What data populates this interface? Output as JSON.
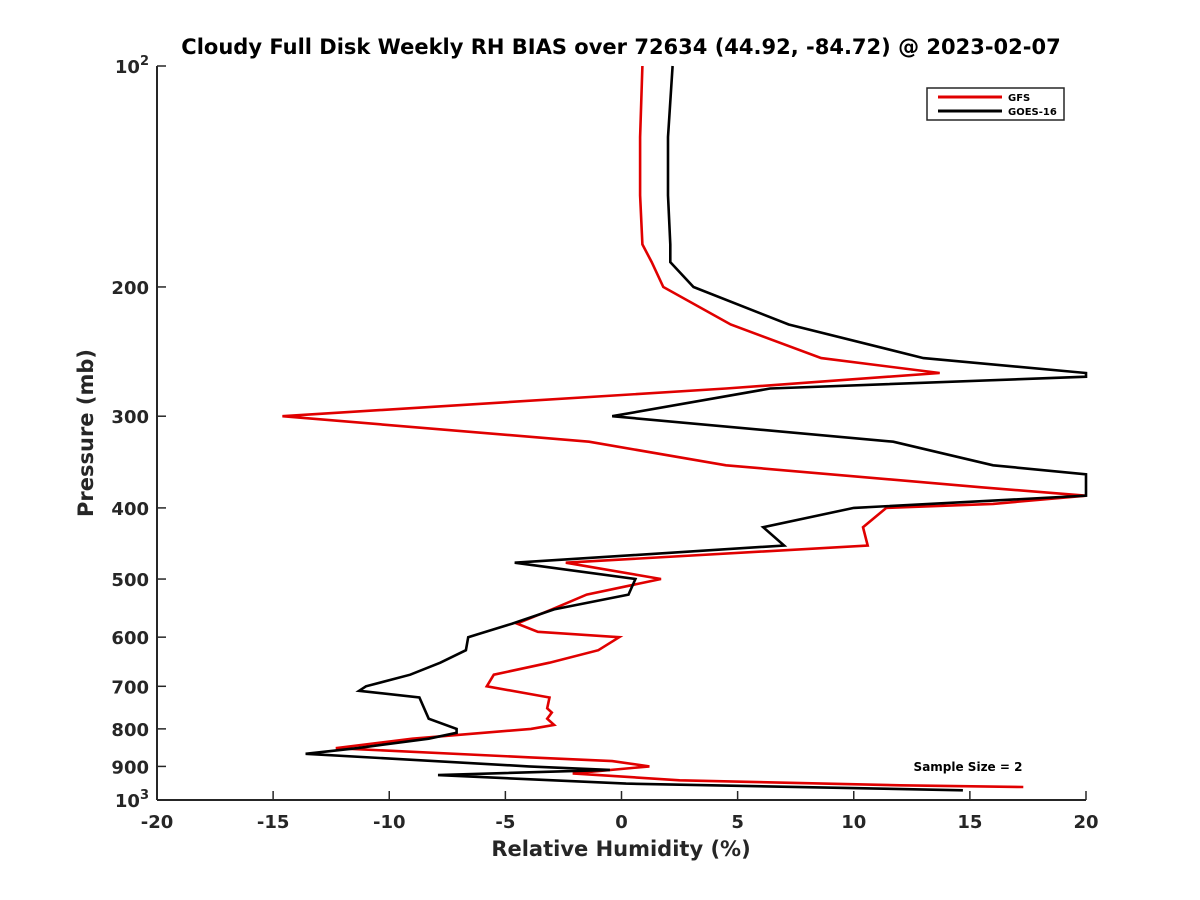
{
  "chart_data": {
    "type": "line",
    "title": "Cloudy Full Disk Weekly RH BIAS over 72634 (44.92, -84.72) @ 2023-02-07",
    "xlabel": "Relative Humidity (%)",
    "ylabel": "Pressure (mb)",
    "xlim": [
      -20,
      20
    ],
    "ylim": [
      100,
      1000
    ],
    "y_scale": "log",
    "y_reversed": true,
    "grid": false,
    "legend_position": "top-right",
    "x_ticks": [
      {
        "value": -20,
        "label": "-20"
      },
      {
        "value": -15,
        "label": "-15"
      },
      {
        "value": -10,
        "label": "-10"
      },
      {
        "value": -5,
        "label": "-5"
      },
      {
        "value": 0,
        "label": "0"
      },
      {
        "value": 5,
        "label": "5"
      },
      {
        "value": 10,
        "label": "10"
      },
      {
        "value": 15,
        "label": "15"
      },
      {
        "value": 20,
        "label": "20"
      }
    ],
    "y_ticks": [
      {
        "value": 100,
        "base": "10",
        "exp": "2"
      },
      {
        "value": 200,
        "base": "200",
        "exp": ""
      },
      {
        "value": 300,
        "base": "300",
        "exp": ""
      },
      {
        "value": 400,
        "base": "400",
        "exp": ""
      },
      {
        "value": 500,
        "base": "500",
        "exp": ""
      },
      {
        "value": 600,
        "base": "600",
        "exp": ""
      },
      {
        "value": 700,
        "base": "700",
        "exp": ""
      },
      {
        "value": 800,
        "base": "800",
        "exp": ""
      },
      {
        "value": 900,
        "base": "900",
        "exp": ""
      },
      {
        "value": 1000,
        "base": "10",
        "exp": "3"
      }
    ],
    "annotation": "Sample Size = 2",
    "series": [
      {
        "name": "GFS",
        "color": "#e00000",
        "points": [
          [
            0.9,
            100
          ],
          [
            0.8,
            125
          ],
          [
            0.8,
            150
          ],
          [
            0.9,
            175
          ],
          [
            1.3,
            185
          ],
          [
            1.8,
            200
          ],
          [
            4.7,
            225
          ],
          [
            8.6,
            250
          ],
          [
            13.7,
            262
          ],
          [
            4.5,
            275
          ],
          [
            -14.6,
            300
          ],
          [
            -1.4,
            325
          ],
          [
            4.5,
            350
          ],
          [
            15.5,
            375
          ],
          [
            20.0,
            385
          ],
          [
            16.0,
            395
          ],
          [
            11.4,
            400
          ],
          [
            10.4,
            425
          ],
          [
            10.6,
            450
          ],
          [
            -2.4,
            475
          ],
          [
            1.7,
            500
          ],
          [
            -1.5,
            525
          ],
          [
            -3.0,
            550
          ],
          [
            -4.5,
            575
          ],
          [
            -3.6,
            590
          ],
          [
            -0.1,
            600
          ],
          [
            -1.0,
            625
          ],
          [
            -3.1,
            650
          ],
          [
            -5.5,
            675
          ],
          [
            -5.8,
            700
          ],
          [
            -3.1,
            725
          ],
          [
            -3.2,
            750
          ],
          [
            -3.0,
            760
          ],
          [
            -3.2,
            775
          ],
          [
            -2.9,
            790
          ],
          [
            -3.9,
            800
          ],
          [
            -9.0,
            825
          ],
          [
            -12.3,
            850
          ],
          [
            -3.9,
            875
          ],
          [
            -0.4,
            885
          ],
          [
            1.2,
            900
          ],
          [
            -2.1,
            920
          ],
          [
            2.5,
            940
          ],
          [
            12.0,
            955
          ],
          [
            17.3,
            960
          ]
        ]
      },
      {
        "name": "GOES-16",
        "color": "#000000",
        "points": [
          [
            2.2,
            100
          ],
          [
            2.0,
            125
          ],
          [
            2.0,
            150
          ],
          [
            2.1,
            175
          ],
          [
            2.1,
            185
          ],
          [
            3.1,
            200
          ],
          [
            7.2,
            225
          ],
          [
            13.0,
            250
          ],
          [
            20.0,
            262
          ],
          [
            20.0,
            265
          ],
          [
            6.4,
            275
          ],
          [
            -0.4,
            300
          ],
          [
            11.7,
            325
          ],
          [
            16.0,
            350
          ],
          [
            20.0,
            360
          ],
          [
            20.0,
            385
          ],
          [
            10.0,
            400
          ],
          [
            6.1,
            425
          ],
          [
            7.0,
            450
          ],
          [
            -4.6,
            475
          ],
          [
            0.6,
            500
          ],
          [
            0.3,
            525
          ],
          [
            -2.9,
            550
          ],
          [
            -4.7,
            575
          ],
          [
            -6.6,
            600
          ],
          [
            -6.7,
            625
          ],
          [
            -7.8,
            650
          ],
          [
            -9.1,
            675
          ],
          [
            -11.0,
            700
          ],
          [
            -11.3,
            710
          ],
          [
            -8.7,
            725
          ],
          [
            -8.3,
            775
          ],
          [
            -7.1,
            800
          ],
          [
            -7.1,
            810
          ],
          [
            -8.3,
            825
          ],
          [
            -11.4,
            850
          ],
          [
            -13.6,
            865
          ],
          [
            -4.0,
            900
          ],
          [
            -0.5,
            910
          ],
          [
            -7.9,
            925
          ],
          [
            0.2,
            950
          ],
          [
            14.7,
            970
          ]
        ]
      }
    ]
  }
}
